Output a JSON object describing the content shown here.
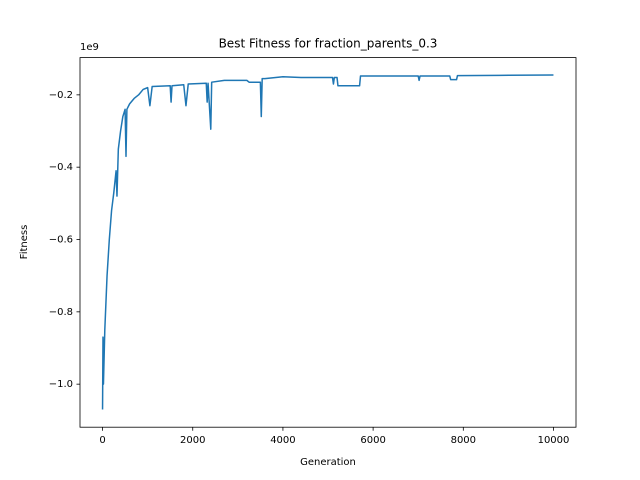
{
  "chart_data": {
    "type": "line",
    "title": "Best Fitness for fraction_parents_0.3",
    "x_label": "Generation",
    "y_label": "Fitness",
    "y_offset_label": "1e9",
    "x": [
      0,
      10,
      20,
      50,
      100,
      150,
      200,
      250,
      300,
      320,
      350,
      400,
      450,
      500,
      520,
      540,
      600,
      700,
      800,
      900,
      1000,
      1050,
      1100,
      1500,
      1520,
      1540,
      1800,
      1850,
      1900,
      2300,
      2320,
      2340,
      2400,
      2420,
      2700,
      3200,
      3250,
      3500,
      3520,
      3540,
      3600,
      4000,
      4400,
      5100,
      5120,
      5140,
      5200,
      5220,
      5700,
      5720,
      7000,
      7020,
      7040,
      7700,
      7720,
      7850,
      7870,
      8800,
      9999
    ],
    "series": [
      {
        "name": "Best Fitness",
        "color": "#1f77b4",
        "values": [
          -1.07,
          -0.87,
          -1.0,
          -0.85,
          -0.7,
          -0.6,
          -0.52,
          -0.47,
          -0.41,
          -0.48,
          -0.35,
          -0.3,
          -0.26,
          -0.24,
          -0.37,
          -0.24,
          -0.225,
          -0.21,
          -0.2,
          -0.185,
          -0.18,
          -0.23,
          -0.177,
          -0.175,
          -0.22,
          -0.175,
          -0.172,
          -0.23,
          -0.17,
          -0.168,
          -0.22,
          -0.168,
          -0.295,
          -0.165,
          -0.16,
          -0.16,
          -0.165,
          -0.165,
          -0.26,
          -0.155,
          -0.155,
          -0.15,
          -0.152,
          -0.152,
          -0.17,
          -0.152,
          -0.152,
          -0.175,
          -0.175,
          -0.148,
          -0.148,
          -0.16,
          -0.148,
          -0.148,
          -0.158,
          -0.158,
          -0.147,
          -0.146,
          -0.145
        ]
      }
    ],
    "xlim": [
      -500,
      10499
    ],
    "xticks": [
      0,
      2000,
      4000,
      6000,
      8000,
      10000
    ],
    "ylim": [
      -1.119,
      -0.097
    ],
    "yticks": [
      {
        "value": -1.0,
        "label": "−1.0"
      },
      {
        "value": -0.8,
        "label": "−0.8"
      },
      {
        "value": -0.6,
        "label": "−0.6"
      },
      {
        "value": -0.4,
        "label": "−0.4"
      },
      {
        "value": -0.2,
        "label": "−0.2"
      }
    ],
    "grid": false
  }
}
